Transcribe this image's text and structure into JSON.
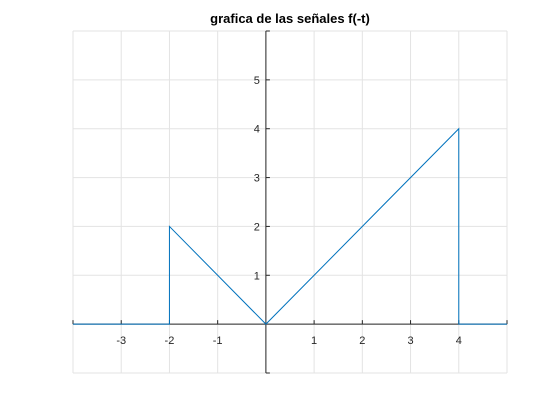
{
  "chart_data": {
    "type": "line",
    "title": "grafica de las señales f(-t)",
    "xlabel": "",
    "ylabel": "",
    "xlim": [
      -4,
      5
    ],
    "ylim": [
      -1,
      6
    ],
    "grid": true,
    "axes_through_origin": true,
    "x_ticks": [
      -3,
      -2,
      -1,
      1,
      2,
      3,
      4
    ],
    "x_tick_labels": [
      "-3",
      "-2",
      "-1",
      "1",
      "2",
      "3",
      "4"
    ],
    "y_ticks": [
      1,
      2,
      3,
      4,
      5
    ],
    "y_tick_labels": [
      "1",
      "2",
      "3",
      "4",
      "5"
    ],
    "series": [
      {
        "color": "#0072bd",
        "x": [
          -4,
          -2,
          -2,
          0,
          4,
          4,
          5
        ],
        "y": [
          0,
          0,
          2,
          0,
          4,
          0,
          0
        ]
      }
    ]
  }
}
